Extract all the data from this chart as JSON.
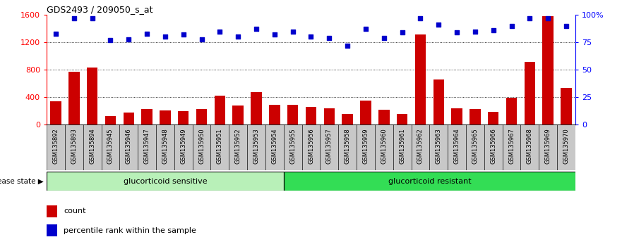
{
  "title": "GDS2493 / 209050_s_at",
  "categories": [
    "GSM135892",
    "GSM135893",
    "GSM135894",
    "GSM135945",
    "GSM135946",
    "GSM135947",
    "GSM135948",
    "GSM135949",
    "GSM135950",
    "GSM135951",
    "GSM135952",
    "GSM135953",
    "GSM135954",
    "GSM135955",
    "GSM135956",
    "GSM135957",
    "GSM135958",
    "GSM135959",
    "GSM135960",
    "GSM135961",
    "GSM135962",
    "GSM135963",
    "GSM135964",
    "GSM135965",
    "GSM135966",
    "GSM135967",
    "GSM135968",
    "GSM135969",
    "GSM135970"
  ],
  "counts": [
    340,
    770,
    830,
    120,
    175,
    230,
    210,
    200,
    230,
    420,
    280,
    470,
    290,
    290,
    260,
    240,
    155,
    350,
    215,
    155,
    1310,
    660,
    240,
    230,
    185,
    390,
    910,
    1580,
    530
  ],
  "percentile": [
    83,
    97,
    97,
    77,
    78,
    83,
    80,
    82,
    78,
    85,
    80,
    87,
    82,
    85,
    80,
    79,
    72,
    87,
    79,
    84,
    97,
    91,
    84,
    85,
    86,
    90,
    97,
    97,
    90
  ],
  "sensitive_count": 13,
  "bar_color": "#cc0000",
  "dot_color": "#0000cc",
  "ylim_left": [
    0,
    1600
  ],
  "yticks_left": [
    0,
    400,
    800,
    1200,
    1600
  ],
  "ylim_right": [
    0,
    100
  ],
  "yticks_right": [
    0,
    25,
    50,
    75,
    100
  ],
  "grid_values": [
    400,
    800,
    1200
  ],
  "sensitive_label": "glucorticoid sensitive",
  "resistant_label": "glucorticoid resistant",
  "disease_state_label": "disease state",
  "sensitive_color": "#b8f0b8",
  "resistant_color": "#33dd55",
  "legend_count_label": "count",
  "legend_pct_label": "percentile rank within the sample",
  "tick_bg_color": "#c8c8c8",
  "bar_width": 0.6
}
